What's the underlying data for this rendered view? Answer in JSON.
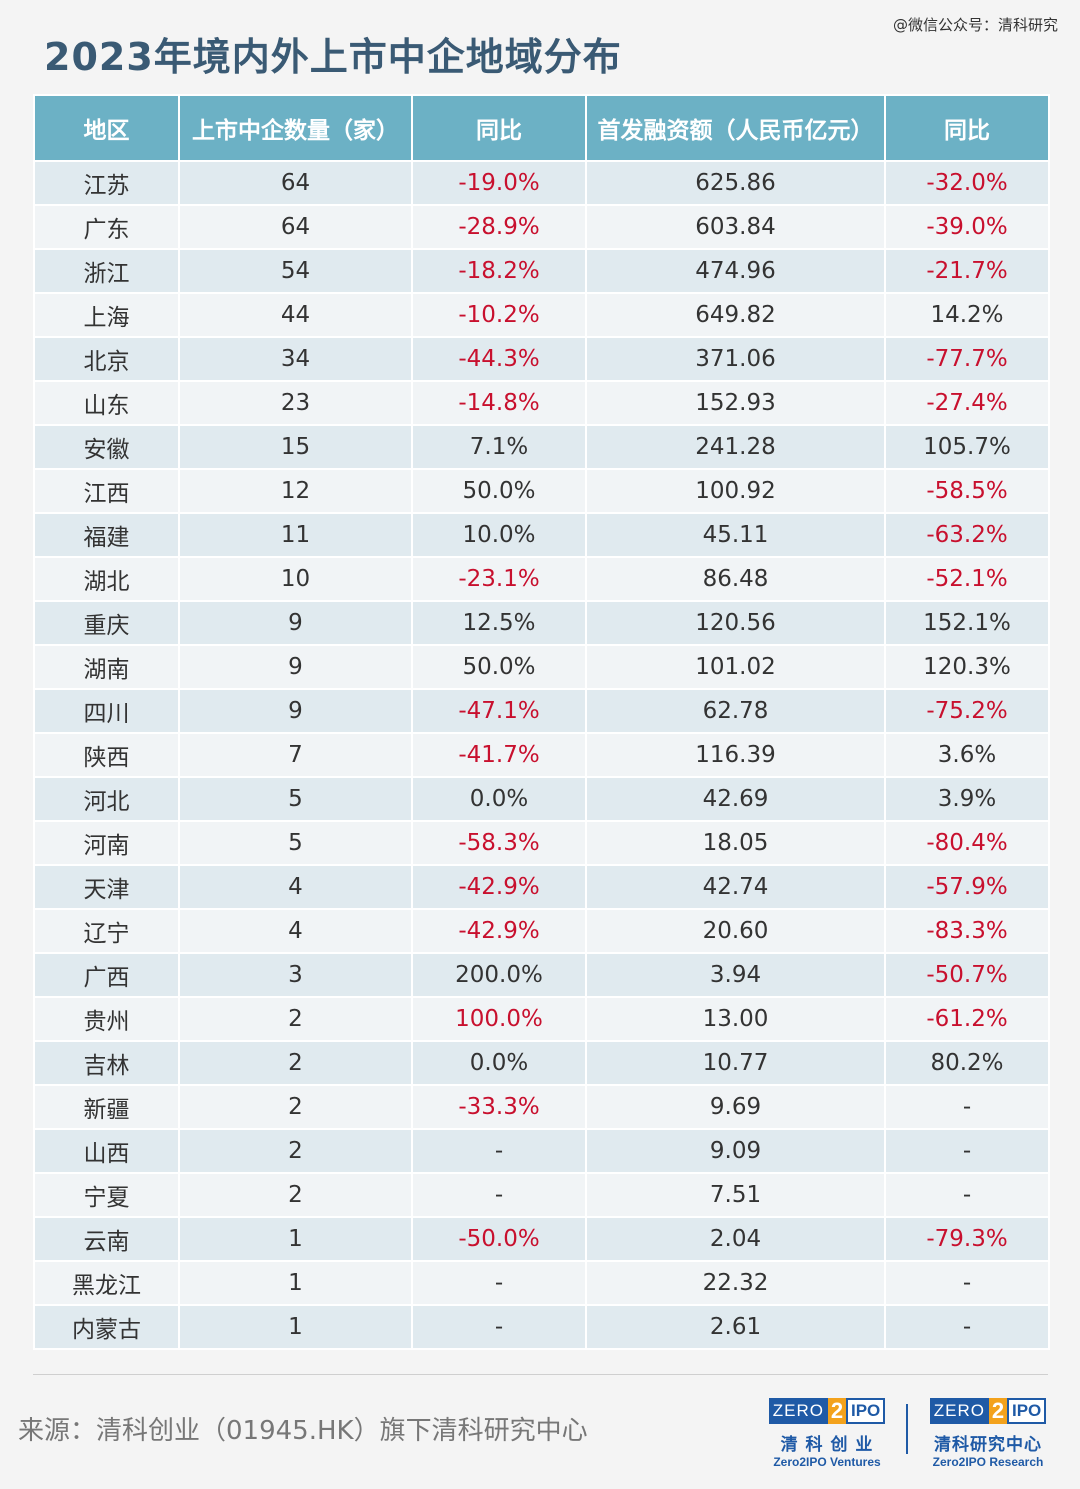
{
  "watermark": "@微信公众号：清科研究",
  "title": "2023年境内外上市中企地域分布",
  "colors": {
    "header_bg": "#6cb1c5",
    "negative": "#c8102e",
    "title": "#3a5a74"
  },
  "table": {
    "headers": [
      "地区",
      "上市中企数量（家）",
      "同比",
      "首发融资额（人民币亿元）",
      "同比"
    ],
    "rows": [
      {
        "region": "江苏",
        "count": "64",
        "yoy1": "-19.0%",
        "amount": "625.86",
        "yoy2": "-32.0%"
      },
      {
        "region": "广东",
        "count": "64",
        "yoy1": "-28.9%",
        "amount": "603.84",
        "yoy2": "-39.0%"
      },
      {
        "region": "浙江",
        "count": "54",
        "yoy1": "-18.2%",
        "amount": "474.96",
        "yoy2": "-21.7%"
      },
      {
        "region": "上海",
        "count": "44",
        "yoy1": "-10.2%",
        "amount": "649.82",
        "yoy2": "14.2%"
      },
      {
        "region": "北京",
        "count": "34",
        "yoy1": "-44.3%",
        "amount": "371.06",
        "yoy2": "-77.7%"
      },
      {
        "region": "山东",
        "count": "23",
        "yoy1": "-14.8%",
        "amount": "152.93",
        "yoy2": "-27.4%"
      },
      {
        "region": "安徽",
        "count": "15",
        "yoy1": "7.1%",
        "amount": "241.28",
        "yoy2": "105.7%"
      },
      {
        "region": "江西",
        "count": "12",
        "yoy1": "50.0%",
        "amount": "100.92",
        "yoy2": "-58.5%"
      },
      {
        "region": "福建",
        "count": "11",
        "yoy1": "10.0%",
        "amount": "45.11",
        "yoy2": "-63.2%"
      },
      {
        "region": "湖北",
        "count": "10",
        "yoy1": "-23.1%",
        "amount": "86.48",
        "yoy2": "-52.1%"
      },
      {
        "region": "重庆",
        "count": "9",
        "yoy1": "12.5%",
        "amount": "120.56",
        "yoy2": "152.1%"
      },
      {
        "region": "湖南",
        "count": "9",
        "yoy1": "50.0%",
        "amount": "101.02",
        "yoy2": "120.3%"
      },
      {
        "region": "四川",
        "count": "9",
        "yoy1": "-47.1%",
        "amount": "62.78",
        "yoy2": "-75.2%"
      },
      {
        "region": "陕西",
        "count": "7",
        "yoy1": "-41.7%",
        "amount": "116.39",
        "yoy2": "3.6%"
      },
      {
        "region": "河北",
        "count": "5",
        "yoy1": "0.0%",
        "amount": "42.69",
        "yoy2": "3.9%"
      },
      {
        "region": "河南",
        "count": "5",
        "yoy1": "-58.3%",
        "amount": "18.05",
        "yoy2": "-80.4%"
      },
      {
        "region": "天津",
        "count": "4",
        "yoy1": "-42.9%",
        "amount": "42.74",
        "yoy2": "-57.9%"
      },
      {
        "region": "辽宁",
        "count": "4",
        "yoy1": "-42.9%",
        "amount": "20.60",
        "yoy2": "-83.3%"
      },
      {
        "region": "广西",
        "count": "3",
        "yoy1": "200.0%",
        "amount": "3.94",
        "yoy2": "-50.7%"
      },
      {
        "region": "贵州",
        "count": "2",
        "yoy1": "100.0%",
        "yoy1_red": true,
        "amount": "13.00",
        "yoy2": "-61.2%"
      },
      {
        "region": "吉林",
        "count": "2",
        "yoy1": "0.0%",
        "amount": "10.77",
        "yoy2": "80.2%"
      },
      {
        "region": "新疆",
        "count": "2",
        "yoy1": "-33.3%",
        "amount": "9.69",
        "yoy2": "-"
      },
      {
        "region": "山西",
        "count": "2",
        "yoy1": "-",
        "amount": "9.09",
        "yoy2": "-"
      },
      {
        "region": "宁夏",
        "count": "2",
        "yoy1": "-",
        "amount": "7.51",
        "yoy2": "-"
      },
      {
        "region": "云南",
        "count": "1",
        "yoy1": "-50.0%",
        "amount": "2.04",
        "yoy2": "-79.3%"
      },
      {
        "region": "黑龙江",
        "count": "1",
        "yoy1": "-",
        "amount": "22.32",
        "yoy2": "-"
      },
      {
        "region": "内蒙古",
        "count": "1",
        "yoy1": "-",
        "amount": "2.61",
        "yoy2": "-"
      }
    ]
  },
  "source": "来源：清科创业（01945.HK）旗下清科研究中心",
  "logos": [
    {
      "zero": "ZERO",
      "two": "2",
      "ipo": "IPO",
      "cn": "清 科 创 业",
      "en": "Zero2IPO Ventures"
    },
    {
      "zero": "ZERO",
      "two": "2",
      "ipo": "IPO",
      "cn": "清科研究中心",
      "en": "Zero2IPO Research"
    }
  ]
}
